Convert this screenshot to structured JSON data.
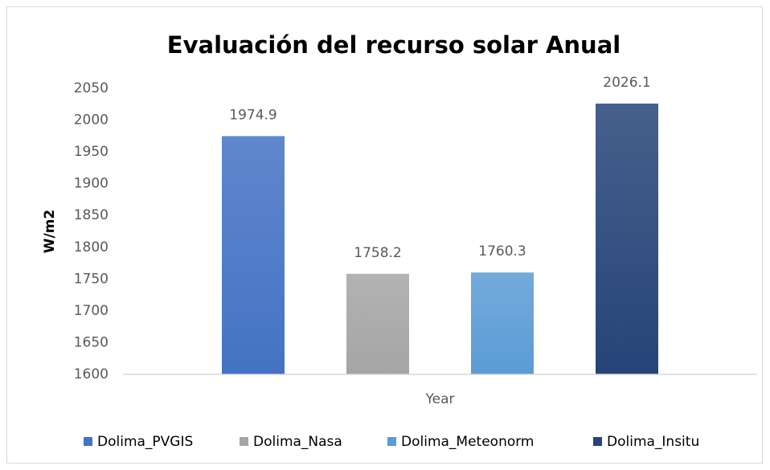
{
  "chart_data": {
    "type": "bar",
    "title": "Evaluación del recurso solar Anual",
    "y_label": "W/m2",
    "categories": [
      "Year"
    ],
    "series": [
      {
        "name": "Dolima_PVGIS",
        "color": "#4472c4",
        "values": [
          1974.9
        ]
      },
      {
        "name": "Dolima_Nasa",
        "color": "#a5a5a5",
        "values": [
          1758.2
        ]
      },
      {
        "name": "Dolima_Meteonorm",
        "color": "#5b9bd5",
        "values": [
          1760.3
        ]
      },
      {
        "name": "Dolima_Insitu",
        "color": "#264478",
        "values": [
          2026.1
        ]
      }
    ],
    "ylim": [
      1600,
      2050
    ],
    "yticks": [
      1600,
      1650,
      1700,
      1750,
      1800,
      1850,
      1900,
      1950,
      2000,
      2050
    ],
    "grid": false,
    "legend": "bottom"
  }
}
